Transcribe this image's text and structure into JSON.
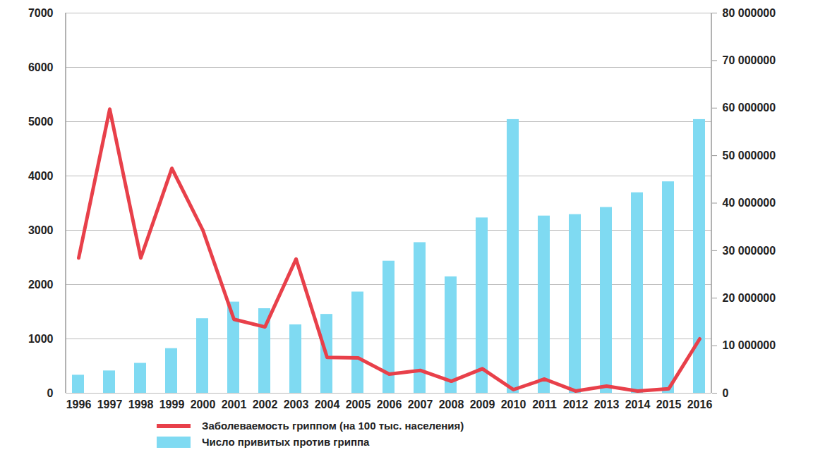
{
  "chart_data": {
    "type": "bar",
    "categories": [
      "1996",
      "1997",
      "1998",
      "1999",
      "2000",
      "2001",
      "2002",
      "2003",
      "2004",
      "2005",
      "2006",
      "2007",
      "2008",
      "2009",
      "2010",
      "2011",
      "2012",
      "2013",
      "2014",
      "2015",
      "2016"
    ],
    "series": [
      {
        "name": "Заболеваемость гриппом (на 100 тыс. населения)",
        "type": "line",
        "color": "#e8404a",
        "values": [
          2490,
          5230,
          2490,
          4140,
          3000,
          1360,
          1220,
          2470,
          660,
          650,
          350,
          420,
          220,
          450,
          65,
          260,
          40,
          130,
          40,
          80,
          1000
        ]
      },
      {
        "name": "Число привитых против гриппа",
        "type": "bar",
        "color": "#7fdaf2",
        "axis": "y2",
        "values": [
          3800000,
          4700000,
          6300000,
          9400000,
          15700000,
          19200000,
          17800000,
          14400000,
          16600000,
          21300000,
          27800000,
          31700000,
          24500000,
          36900000,
          57600000,
          37300000,
          37600000,
          39100000,
          42200000,
          44500000,
          57600000
        ]
      }
    ],
    "ylim": [
      0,
      7000
    ],
    "yticks": [
      0,
      1000,
      2000,
      3000,
      4000,
      5000,
      6000,
      7000
    ],
    "y2lim": [
      0,
      80000000
    ],
    "y2ticks": [
      0,
      {
        "value": 10000000,
        "label": "10 000000"
      },
      {
        "value": 20000000,
        "label": "20 000000"
      },
      {
        "value": 30000000,
        "label": "30 000000"
      },
      {
        "value": 40000000,
        "label": "40 000000"
      },
      {
        "value": 50000000,
        "label": "50 000000"
      },
      {
        "value": 60000000,
        "label": "60 000000"
      },
      {
        "value": 70000000,
        "label": "70 000000"
      },
      {
        "value": 80000000,
        "label": "80 000000"
      }
    ],
    "grid": true,
    "legend": "bottom"
  }
}
